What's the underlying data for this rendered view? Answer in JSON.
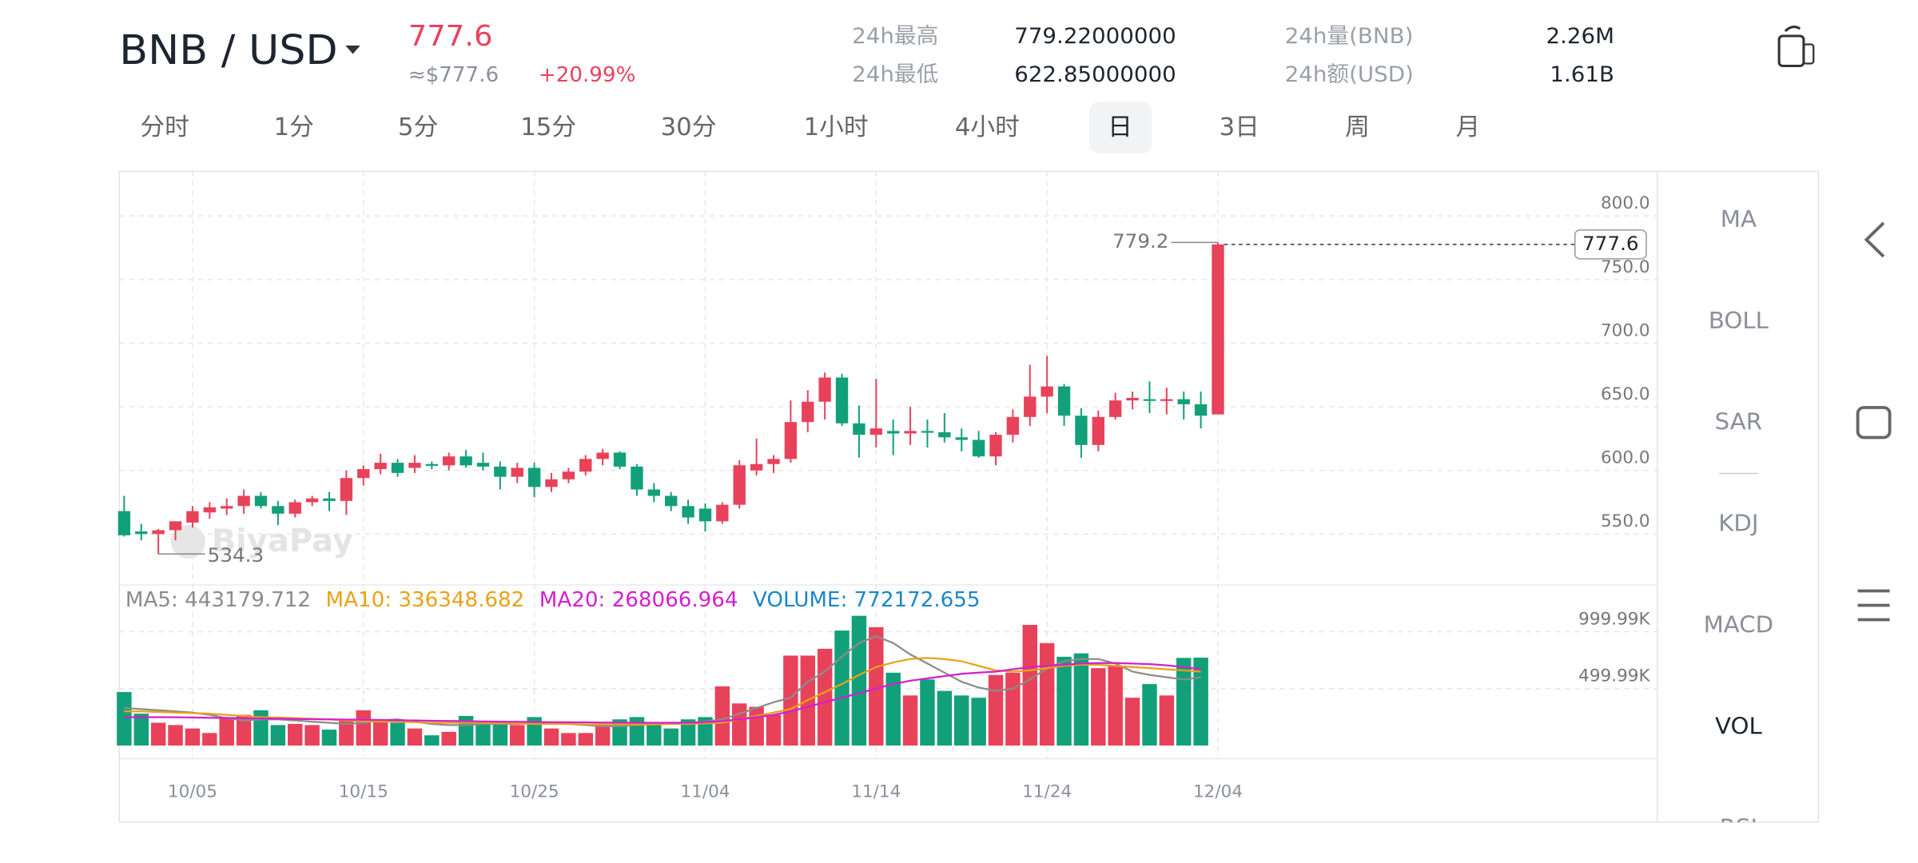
{
  "header": {
    "pair": "BNB / USD",
    "price": "777.6",
    "price_usd": "≈$777.6",
    "change": "+20.99%"
  },
  "stats": [
    {
      "label": "24h最高",
      "value": "779.22000000"
    },
    {
      "label": "24h最低",
      "value": "622.85000000"
    },
    {
      "label": "24h量(BNB)",
      "value": "2.26M"
    },
    {
      "label": "24h额(USD)",
      "value": "1.61B"
    }
  ],
  "tabs": [
    "分时",
    "1分",
    "5分",
    "15分",
    "30分",
    "1小时",
    "4小时",
    "日",
    "3日",
    "周",
    "月"
  ],
  "active_tab": 7,
  "indicators": [
    "MA",
    "BOLL",
    "SAR",
    "KDJ",
    "MACD",
    "VOL",
    "RSI"
  ],
  "active_indicator": 5,
  "watermark": "BiyaPay",
  "chart_data": [
    {
      "type": "candlestick",
      "categories": [
        null,
        null,
        null,
        null,
        "10/05",
        null,
        null,
        null,
        null,
        null,
        null,
        null,
        null,
        null,
        "10/15",
        null,
        null,
        null,
        null,
        null,
        null,
        null,
        null,
        null,
        "10/25",
        null,
        null,
        null,
        null,
        null,
        null,
        null,
        null,
        null,
        "11/04",
        null,
        null,
        null,
        null,
        null,
        null,
        null,
        null,
        null,
        "11/14",
        null,
        null,
        null,
        null,
        null,
        null,
        null,
        null,
        null,
        "11/24",
        null,
        null,
        null,
        null,
        null,
        null,
        null,
        null,
        null,
        "12/04"
      ],
      "open": [
        568,
        552,
        550,
        553,
        559,
        567,
        570,
        572,
        580,
        572,
        566,
        575,
        578,
        576,
        594,
        601,
        606,
        602,
        605,
        604,
        611,
        606,
        603,
        595,
        602,
        587,
        593,
        599,
        609,
        614,
        603,
        585,
        580,
        572,
        570,
        560,
        573,
        600,
        605,
        609,
        638,
        654,
        673,
        637,
        628,
        631,
        629,
        631,
        630,
        626,
        624,
        611,
        628,
        642,
        658,
        666,
        643,
        620,
        642,
        655,
        656,
        655,
        656,
        652,
        644
      ],
      "high": [
        580,
        558,
        554,
        560,
        572,
        575,
        578,
        585,
        583,
        576,
        577,
        580,
        583,
        600,
        604,
        613,
        609,
        612,
        607,
        614,
        616,
        614,
        607,
        606,
        606,
        598,
        602,
        612,
        617,
        615,
        605,
        590,
        583,
        577,
        574,
        575,
        608,
        625,
        612,
        655,
        663,
        677,
        676,
        651,
        672,
        640,
        650,
        640,
        645,
        633,
        631,
        630,
        648,
        683,
        690,
        668,
        649,
        647,
        661,
        662,
        670,
        665,
        662,
        662,
        779.2
      ],
      "low": [
        548,
        545,
        534.3,
        545,
        555,
        562,
        565,
        566,
        570,
        557,
        563,
        572,
        568,
        565,
        588,
        597,
        595,
        598,
        601,
        600,
        602,
        600,
        585,
        590,
        579,
        583,
        590,
        596,
        604,
        601,
        580,
        575,
        568,
        558,
        552,
        558,
        570,
        596,
        598,
        606,
        630,
        640,
        635,
        610,
        618,
        612,
        620,
        618,
        622,
        615,
        610,
        604,
        622,
        635,
        645,
        635,
        610,
        615,
        640,
        648,
        645,
        644,
        640,
        633,
        644
      ],
      "close": [
        549,
        550,
        553,
        560,
        568,
        571,
        572,
        580,
        572,
        566,
        575,
        578,
        576,
        594,
        601,
        606,
        598,
        606,
        604,
        611,
        604,
        603,
        595,
        602,
        587,
        593,
        599,
        609,
        614,
        603,
        585,
        580,
        572,
        563,
        560,
        573,
        604,
        605,
        609,
        638,
        654,
        673,
        637,
        628,
        633,
        629,
        631,
        630,
        626,
        624,
        611,
        628,
        642,
        658,
        666,
        643,
        620,
        642,
        655,
        657,
        655,
        656,
        652,
        643,
        777.6
      ],
      "up_color": "#e8425a",
      "down_color": "#12a07a",
      "ylim": [
        510,
        835
      ],
      "yticks": [
        {
          "value": 550,
          "label": "550.0"
        },
        {
          "value": 600,
          "label": "600.0"
        },
        {
          "value": 650,
          "label": "650.0"
        },
        {
          "value": 700,
          "label": "700.0"
        },
        {
          "value": 750,
          "label": "750.0"
        },
        {
          "value": 800,
          "label": "800.0"
        }
      ],
      "grid": true
    },
    {
      "type": "bar",
      "ylim": [
        0,
        1390000
      ],
      "yticks": [
        {
          "value": 499990,
          "label": "499.99K"
        },
        {
          "value": 999990,
          "label": "999.99K"
        }
      ],
      "grid": true,
      "series": [
        {
          "type": "line",
          "label": "MA5: 443179.712",
          "color": "#8c8c8c",
          "values": [
            330000,
            320000,
            310000,
            300000,
            290000,
            270000,
            240000,
            220000,
            230000,
            230000,
            220000,
            210000,
            200000,
            190000,
            200000,
            220000,
            230000,
            210000,
            190000,
            180000,
            180000,
            190000,
            190000,
            190000,
            200000,
            200000,
            190000,
            180000,
            170000,
            170000,
            180000,
            190000,
            200000,
            200000,
            210000,
            230000,
            280000,
            330000,
            380000,
            420000,
            560000,
            650000,
            780000,
            900000,
            960000,
            900000,
            800000,
            720000,
            640000,
            560000,
            510000,
            480000,
            500000,
            580000,
            680000,
            740000,
            760000,
            760000,
            720000,
            650000,
            620000,
            600000,
            580000,
            600000,
            null
          ]
        },
        {
          "type": "line",
          "label": "MA10: 336348.682",
          "color": "#e8a317",
          "values": [
            300000,
            300000,
            295000,
            290000,
            285000,
            280000,
            270000,
            260000,
            250000,
            245000,
            240000,
            235000,
            230000,
            220000,
            215000,
            210000,
            210000,
            205000,
            200000,
            200000,
            200000,
            200000,
            195000,
            195000,
            190000,
            190000,
            190000,
            185000,
            185000,
            185000,
            185000,
            185000,
            190000,
            190000,
            195000,
            200000,
            230000,
            260000,
            290000,
            320000,
            400000,
            470000,
            540000,
            620000,
            690000,
            730000,
            760000,
            770000,
            760000,
            740000,
            700000,
            660000,
            650000,
            660000,
            680000,
            700000,
            710000,
            710000,
            700000,
            690000,
            680000,
            670000,
            660000,
            650000,
            null
          ]
        },
        {
          "type": "line",
          "label": "MA20: 268066.964",
          "color": "#d41fd0",
          "values": [
            250000,
            250000,
            250000,
            248000,
            246000,
            244000,
            242000,
            240000,
            238000,
            236000,
            234000,
            232000,
            230000,
            228000,
            226000,
            224000,
            222000,
            220000,
            218000,
            216000,
            214000,
            212000,
            210000,
            208000,
            206000,
            205000,
            204000,
            203000,
            202000,
            201000,
            200000,
            200000,
            200000,
            200000,
            205000,
            215000,
            230000,
            250000,
            270000,
            300000,
            340000,
            380000,
            420000,
            460000,
            500000,
            540000,
            570000,
            590000,
            610000,
            630000,
            640000,
            650000,
            670000,
            690000,
            700000,
            710000,
            720000,
            725000,
            725000,
            720000,
            715000,
            705000,
            690000,
            670000,
            null
          ]
        },
        {
          "type": "bar",
          "label": "VOLUME: 772172.655",
          "color": "#1c86c7",
          "values": [
            470000,
            280000,
            200000,
            180000,
            150000,
            110000,
            250000,
            270000,
            310000,
            180000,
            190000,
            180000,
            140000,
            230000,
            310000,
            230000,
            200000,
            150000,
            90000,
            120000,
            260000,
            200000,
            200000,
            180000,
            250000,
            150000,
            110000,
            110000,
            180000,
            230000,
            250000,
            180000,
            150000,
            230000,
            250000,
            520000,
            370000,
            340000,
            270000,
            790000,
            790000,
            850000,
            1010000,
            1140000,
            1040000,
            640000,
            440000,
            580000,
            480000,
            440000,
            420000,
            620000,
            640000,
            1060000,
            900000,
            780000,
            810000,
            680000,
            700000,
            420000,
            540000,
            440000,
            770000,
            772172.655,
            null
          ]
        }
      ]
    }
  ]
}
